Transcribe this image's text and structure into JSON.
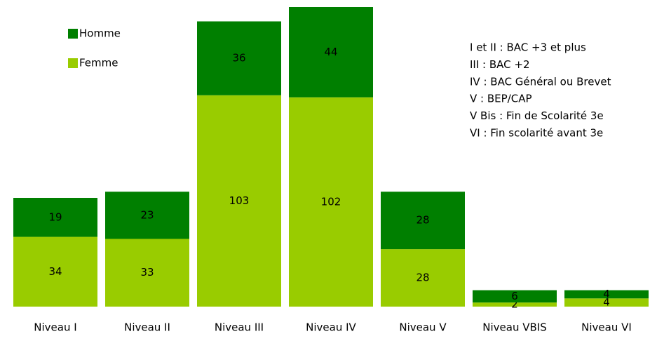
{
  "chart_data": {
    "type": "stacked_bar",
    "categories": [
      "Niveau I",
      "Niveau II",
      "Niveau III",
      "Niveau IV",
      "Niveau V",
      "Niveau VBIS",
      "Niveau VI"
    ],
    "series": [
      {
        "name": "Femme",
        "color": "#99cc00",
        "values": [
          34,
          33,
          103,
          102,
          28,
          2,
          4
        ]
      },
      {
        "name": "Homme",
        "color": "#007f00",
        "values": [
          19,
          23,
          36,
          44,
          28,
          6,
          4
        ]
      }
    ],
    "annotations": [
      "I et II : BAC +3 et plus",
      "III : BAC +2",
      "IV : BAC Général ou Brevet",
      "V : BEP/CAP",
      "V Bis : Fin de Scolarité 3e",
      "VI : Fin scolarité avant 3e"
    ]
  }
}
